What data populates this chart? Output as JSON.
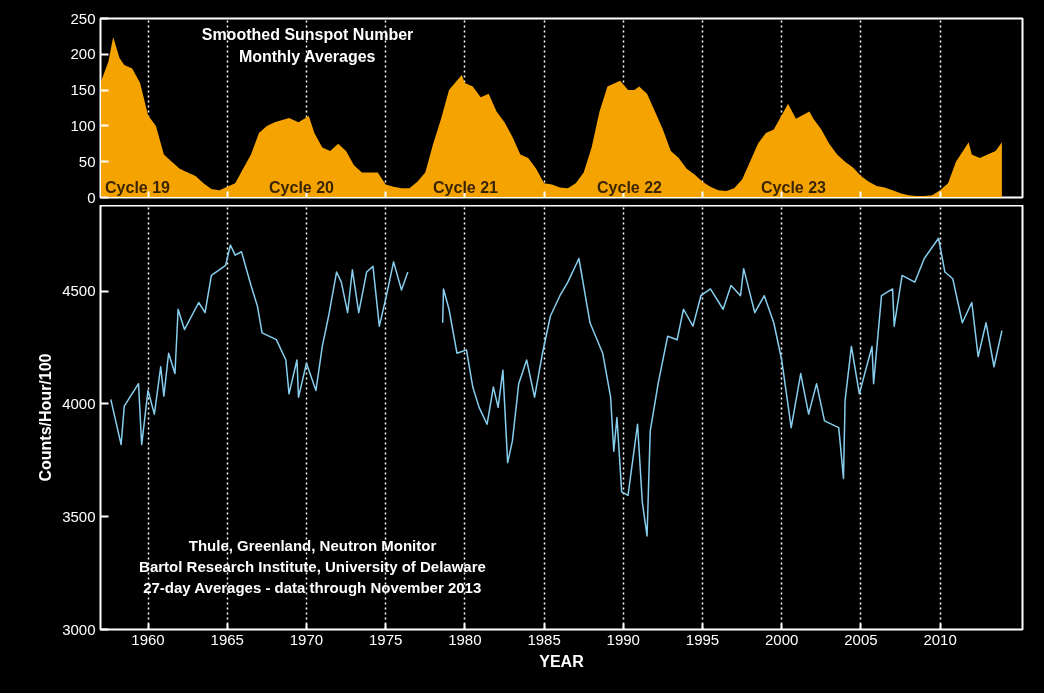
{
  "chart_data": [
    {
      "type": "area",
      "title": "Smoothed Sunspot Number\nMonthly Averages",
      "color": "#f5a300",
      "grid": "x",
      "tick_labels": "y",
      "xlim": [
        1957.0,
        2015.2
      ],
      "xticks": [
        1960,
        1965,
        1970,
        1975,
        1980,
        1985,
        1990,
        1995,
        2000,
        2005,
        2010
      ],
      "ylim": [
        0,
        250
      ],
      "yticks": [
        0,
        50,
        100,
        150,
        200,
        250
      ],
      "x": [
        1957.0,
        1957.5,
        1957.8,
        1958.2,
        1958.5,
        1959.0,
        1959.5,
        1960.0,
        1960.5,
        1961.0,
        1961.5,
        1962.0,
        1962.5,
        1963.0,
        1963.5,
        1964.0,
        1964.5,
        1965.0,
        1965.5,
        1966.0,
        1966.5,
        1967.0,
        1967.5,
        1968.0,
        1968.9,
        1969.5,
        1970.15,
        1970.5,
        1971.0,
        1971.5,
        1972.0,
        1972.5,
        1973.0,
        1973.5,
        1974.0,
        1974.5,
        1975.0,
        1975.5,
        1976.0,
        1976.5,
        1977.0,
        1977.5,
        1978.0,
        1978.5,
        1979.0,
        1979.8,
        1980.0,
        1980.5,
        1981.0,
        1981.5,
        1982.0,
        1982.5,
        1983.0,
        1983.5,
        1984.0,
        1984.5,
        1985.0,
        1985.5,
        1986.0,
        1986.5,
        1987.0,
        1987.5,
        1988.0,
        1988.5,
        1989.0,
        1989.8,
        1990.3,
        1990.7,
        1991.0,
        1991.5,
        1992.0,
        1992.5,
        1993.0,
        1993.5,
        1994.0,
        1994.5,
        1995.0,
        1995.5,
        1996.0,
        1996.5,
        1997.0,
        1997.5,
        1998.0,
        1998.5,
        1999.0,
        1999.5,
        2000.0,
        2000.4,
        2000.9,
        2001.75,
        2002.0,
        2002.5,
        2003.0,
        2003.5,
        2004.0,
        2004.5,
        2005.0,
        2005.5,
        2006.0,
        2006.5,
        2007.0,
        2007.5,
        2008.0,
        2008.5,
        2009.0,
        2009.5,
        2010.0,
        2010.5,
        2011.0,
        2011.8,
        2012.0,
        2012.5,
        2013.0,
        2013.5,
        2013.9
      ],
      "values": [
        160,
        190,
        224,
        195,
        185,
        180,
        160,
        115,
        100,
        60,
        50,
        40,
        35,
        30,
        20,
        12,
        10,
        15,
        20,
        40,
        60,
        90,
        100,
        105,
        111,
        105,
        114,
        90,
        70,
        65,
        75,
        65,
        45,
        35,
        35,
        35,
        18,
        15,
        13,
        13,
        22,
        35,
        75,
        110,
        150,
        171,
        160,
        155,
        140,
        145,
        120,
        105,
        85,
        60,
        55,
        40,
        20,
        18,
        14,
        13,
        20,
        35,
        70,
        120,
        155,
        163,
        150,
        150,
        155,
        145,
        120,
        95,
        65,
        55,
        40,
        32,
        22,
        15,
        10,
        9,
        13,
        25,
        50,
        75,
        90,
        95,
        115,
        131,
        110,
        120,
        110,
        95,
        75,
        60,
        50,
        42,
        30,
        22,
        16,
        14,
        10,
        6,
        3,
        2,
        2,
        3,
        10,
        20,
        50,
        77,
        60,
        55,
        60,
        65,
        77
      ],
      "annotations": [
        "Cycle 19",
        "Cycle 20",
        "Cycle 21",
        "Cycle 22",
        "Cycle 23"
      ]
    },
    {
      "type": "line",
      "xlabel": "YEAR",
      "ylabel": "Counts/Hour/100",
      "color": "#86cdee",
      "grid": "x",
      "xlim": [
        1957.0,
        2015.2
      ],
      "xticks": [
        1960,
        1965,
        1970,
        1975,
        1980,
        1985,
        1990,
        1995,
        2000,
        2005,
        2010
      ],
      "ylim": [
        3000,
        4880
      ],
      "yticks": [
        3000,
        3500,
        4000,
        4500
      ],
      "x": [
        1957.65,
        1958.3,
        1958.5,
        1959.4,
        1959.6,
        1960.0,
        1960.4,
        1960.8,
        1961.0,
        1961.3,
        1961.7,
        1961.9,
        1962.3,
        1963.2,
        1963.6,
        1964.0,
        1964.9,
        1965.2,
        1965.5,
        1965.9,
        1966.5,
        1966.9,
        1967.2,
        1968.1,
        1968.7,
        1968.9,
        1969.4,
        1969.5,
        1970.0,
        1970.6,
        1971.0,
        1971.4,
        1971.9,
        1972.2,
        1972.6,
        1972.9,
        1973.3,
        1973.8,
        1974.2,
        1974.6,
        1975.0,
        1975.5,
        1976.0,
        1976.4,
        1977.5,
        1978.6,
        1978.65,
        1979.0,
        1979.5,
        1980.1,
        1980.5,
        1980.9,
        1981.4,
        1981.8,
        1982.1,
        1982.4,
        1982.7,
        1983.0,
        1983.4,
        1983.9,
        1984.4,
        1984.9,
        1985.4,
        1986.0,
        1986.5,
        1987.2,
        1987.9,
        1988.7,
        1989.2,
        1989.4,
        1989.6,
        1989.9,
        1990.3,
        1990.9,
        1991.2,
        1991.5,
        1991.7,
        1992.2,
        1992.8,
        1993.4,
        1993.8,
        1994.4,
        1994.9,
        1995.5,
        1996.3,
        1996.8,
        1997.4,
        1997.6,
        1998.3,
        1998.9,
        1999.5,
        2000.0,
        2000.6,
        2001.2,
        2001.7,
        2002.2,
        2002.7,
        2003.6,
        2003.9,
        2004.0,
        2004.4,
        2004.9,
        2005.7,
        2005.8,
        2006.3,
        2007.0,
        2007.1,
        2007.6,
        2008.4,
        2009.0,
        2009.9,
        2010.3,
        2010.8,
        2011.4,
        2012.0,
        2012.4,
        2012.9,
        2013.4,
        2013.9
      ],
      "values": [
        4020,
        3820,
        3990,
        4090,
        3820,
        4060,
        3955,
        4165,
        4035,
        4225,
        4135,
        4420,
        4330,
        4450,
        4405,
        4570,
        4615,
        4705,
        4660,
        4675,
        4525,
        4435,
        4315,
        4285,
        4195,
        4045,
        4195,
        4030,
        4180,
        4060,
        4255,
        4390,
        4585,
        4540,
        4405,
        4595,
        4405,
        4585,
        4610,
        4345,
        4465,
        4630,
        4505,
        4585,
        null,
        4360,
        4510,
        4420,
        4225,
        4240,
        4075,
        3985,
        3910,
        4075,
        3985,
        4150,
        3740,
        3835,
        4090,
        4195,
        4030,
        4225,
        4390,
        4480,
        4540,
        4645,
        4360,
        4225,
        4030,
        3790,
        3940,
        3610,
        3595,
        3910,
        3565,
        3415,
        3880,
        4090,
        4300,
        4285,
        4420,
        4345,
        4480,
        4510,
        4420,
        4525,
        4480,
        4600,
        4405,
        4480,
        4360,
        4195,
        3895,
        4135,
        3955,
        4090,
        3925,
        3895,
        3670,
        4015,
        4255,
        4045,
        4255,
        4090,
        4480,
        4510,
        4345,
        4570,
        4540,
        4645,
        4735,
        4585,
        4555,
        4360,
        4450,
        4210,
        4360,
        4165,
        4325
      ],
      "annotations": [
        "Thule, Greenland, Neutron Monitor",
        "Bartol Research Institute, University of Delaware",
        "27-day Averages - data through November 2013"
      ]
    }
  ]
}
